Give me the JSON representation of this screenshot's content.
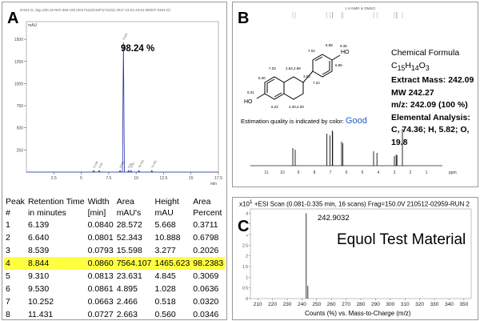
{
  "panel_a": {
    "letter": "A",
    "header_text": "DAD1 D, Sig=230,16 Ref=360,100 (2017112ZCMF\\171122) 2017-11-23 23:51:38\\007-0201.D)",
    "yunit": "mAU",
    "percent_label": "98.24 %",
    "table_headers_row1": [
      "Peak",
      "Retention Time",
      "Width",
      "Area",
      "Height",
      "Area"
    ],
    "table_headers_row2": [
      "#",
      "in minutes",
      "[min]",
      "mAU's",
      "mAU",
      "Percent"
    ],
    "rows": [
      [
        "1",
        "6.139",
        "0.0840",
        "28.572",
        "5.668",
        "0.3711"
      ],
      [
        "2",
        "6.640",
        "0.0801",
        "52.343",
        "10.888",
        "0.6798"
      ],
      [
        "3",
        "8.539",
        "0.0793",
        "15.598",
        "3.277",
        "0.2026"
      ],
      [
        "4",
        "8.844",
        "0.0860",
        "7564.107",
        "1465.623",
        "98.2383"
      ],
      [
        "5",
        "9.310",
        "0.0813",
        "23.631",
        "4.845",
        "0.3069"
      ],
      [
        "6",
        "9.530",
        "0.0861",
        "4.895",
        "1.028",
        "0.0636"
      ],
      [
        "7",
        "10.252",
        "0.0663",
        "2.466",
        "0.518",
        "0.0320"
      ],
      [
        "8",
        "11.431",
        "0.0727",
        "2.663",
        "0.560",
        "0.0346"
      ]
    ],
    "highlight_color": "#ffff40"
  },
  "panel_b": {
    "letter": "B",
    "spectrum_header": "1 H NMR in DMSO",
    "formula_title": "Chemical Formula",
    "formula_c": "C",
    "formula_c_sub": "15",
    "formula_h": "H",
    "formula_h_sub": "14",
    "formula_o": "O",
    "formula_o_sub": "3",
    "extract_mass": "Extract Mass: 242.09",
    "mw": "MW 242.27",
    "mz": "m/z: 242.09 (100 %)",
    "elemental_title": "Elemental Analysis:",
    "elemental": "C, 74.36; H, 5.82; O, 19.8",
    "quality_text": "Estimation quality is indicated by color:",
    "quality_word": "Good",
    "ppm_label": "ppm",
    "nmr_ticks": [
      "11",
      "10",
      "9",
      "8",
      "7",
      "6",
      "5",
      "4",
      "3",
      "2",
      "1"
    ],
    "structure_labels": {
      "oh_right": "HO",
      "oh_left": "HO",
      "h1": "6.88",
      "h2": "7.02",
      "h3": "7.03",
      "h4": "2.84,2.89",
      "h5": "3.00",
      "h6": "6.86",
      "h7": "7.22",
      "h8": "4.30,4.09",
      "h9": "6.30",
      "h10": "6.22",
      "h11": "9.31",
      "oh_val": "9.35"
    }
  },
  "panel_c": {
    "letter": "C",
    "y_multiplier": "x10",
    "y_multiplier_exp": "1",
    "scan_header": "+ESI Scan (0.081-0.335 min, 16 scans) Frag=150.0V 210512-02959-RUN 2",
    "peak_label": "242.9032",
    "title": "Equol Test Material",
    "x_axis_title": "Counts (%) vs. Mass-to-Charge (m/z)",
    "y_ticks": [
      "0",
      "0.5",
      "1",
      "1.5",
      "2",
      "2.5",
      "3",
      "3.5",
      "4"
    ]
  },
  "chart_data": [
    {
      "type": "line",
      "title": "HPLC chromatogram (DAD1 230 nm)",
      "xlabel": "min",
      "ylabel": "mAU",
      "xlim": [
        0,
        17.5
      ],
      "ylim": [
        0,
        1700
      ],
      "x_ticks": [
        "2.5",
        "5",
        "7.5",
        "10",
        "12.5",
        "15",
        "17.5"
      ],
      "y_ticks": [
        "250",
        "500",
        "750",
        "1000",
        "1250",
        "1500"
      ],
      "peaks": [
        {
          "x": 6.139,
          "y": 5.668
        },
        {
          "x": 6.64,
          "y": 10.888
        },
        {
          "x": 8.539,
          "y": 3.277
        },
        {
          "x": 8.844,
          "y": 1465.623
        },
        {
          "x": 9.31,
          "y": 4.845
        },
        {
          "x": 9.53,
          "y": 1.028
        },
        {
          "x": 10.252,
          "y": 0.518
        },
        {
          "x": 11.431,
          "y": 0.56
        }
      ]
    },
    {
      "type": "line",
      "title": "1H NMR spectrum",
      "xlabel": "ppm",
      "xlim": [
        12,
        0
      ],
      "peaks_ppm": [
        9.35,
        9.2,
        7.22,
        7.03,
        6.88,
        6.86,
        6.3,
        6.22,
        4.3,
        4.09,
        3.0,
        2.89,
        2.84,
        2.5
      ]
    },
    {
      "type": "bar",
      "title": "+ESI Scan mass spectrum",
      "xlabel": "Counts (%) vs. Mass-to-Charge (m/z)",
      "ylabel": "Counts x10^1",
      "xlim": [
        205,
        355
      ],
      "ylim": [
        0,
        4.2
      ],
      "x_ticks": [
        "210",
        "220",
        "230",
        "240",
        "250",
        "260",
        "270",
        "280",
        "290",
        "300",
        "310",
        "320",
        "330",
        "340",
        "350"
      ],
      "peaks": [
        {
          "x": 242.9032,
          "y": 4.0
        },
        {
          "x": 244.0,
          "y": 0.6
        }
      ]
    }
  ]
}
